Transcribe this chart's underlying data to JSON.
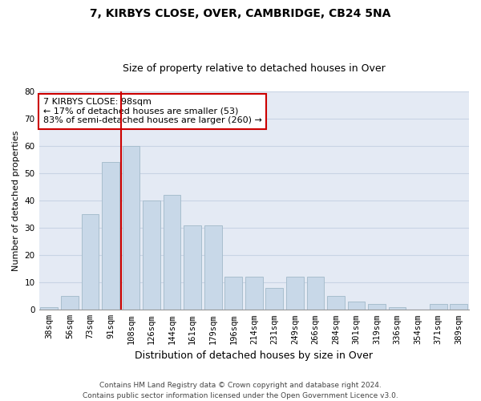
{
  "title": "7, KIRBYS CLOSE, OVER, CAMBRIDGE, CB24 5NA",
  "subtitle": "Size of property relative to detached houses in Over",
  "xlabel": "Distribution of detached houses by size in Over",
  "ylabel": "Number of detached properties",
  "categories": [
    "38sqm",
    "56sqm",
    "73sqm",
    "91sqm",
    "108sqm",
    "126sqm",
    "144sqm",
    "161sqm",
    "179sqm",
    "196sqm",
    "214sqm",
    "231sqm",
    "249sqm",
    "266sqm",
    "284sqm",
    "301sqm",
    "319sqm",
    "336sqm",
    "354sqm",
    "371sqm",
    "389sqm"
  ],
  "values": [
    1,
    5,
    35,
    54,
    60,
    40,
    42,
    31,
    31,
    12,
    12,
    8,
    12,
    12,
    5,
    3,
    2,
    1,
    0,
    2,
    2
  ],
  "bar_color": "#c8d8e8",
  "bar_edge_color": "#a8bece",
  "vline_x": 3.5,
  "vline_color": "#cc0000",
  "annotation_text": "7 KIRBYS CLOSE: 98sqm\n← 17% of detached houses are smaller (53)\n83% of semi-detached houses are larger (260) →",
  "annotation_box_color": "#ffffff",
  "annotation_box_edge_color": "#cc0000",
  "ylim": [
    0,
    80
  ],
  "yticks": [
    0,
    10,
    20,
    30,
    40,
    50,
    60,
    70,
    80
  ],
  "grid_color": "#c8d4e4",
  "background_color": "#e4eaf4",
  "footer": "Contains HM Land Registry data © Crown copyright and database right 2024.\nContains public sector information licensed under the Open Government Licence v3.0.",
  "title_fontsize": 10,
  "subtitle_fontsize": 9,
  "xlabel_fontsize": 9,
  "ylabel_fontsize": 8,
  "tick_fontsize": 7.5,
  "annotation_fontsize": 8,
  "footer_fontsize": 6.5
}
